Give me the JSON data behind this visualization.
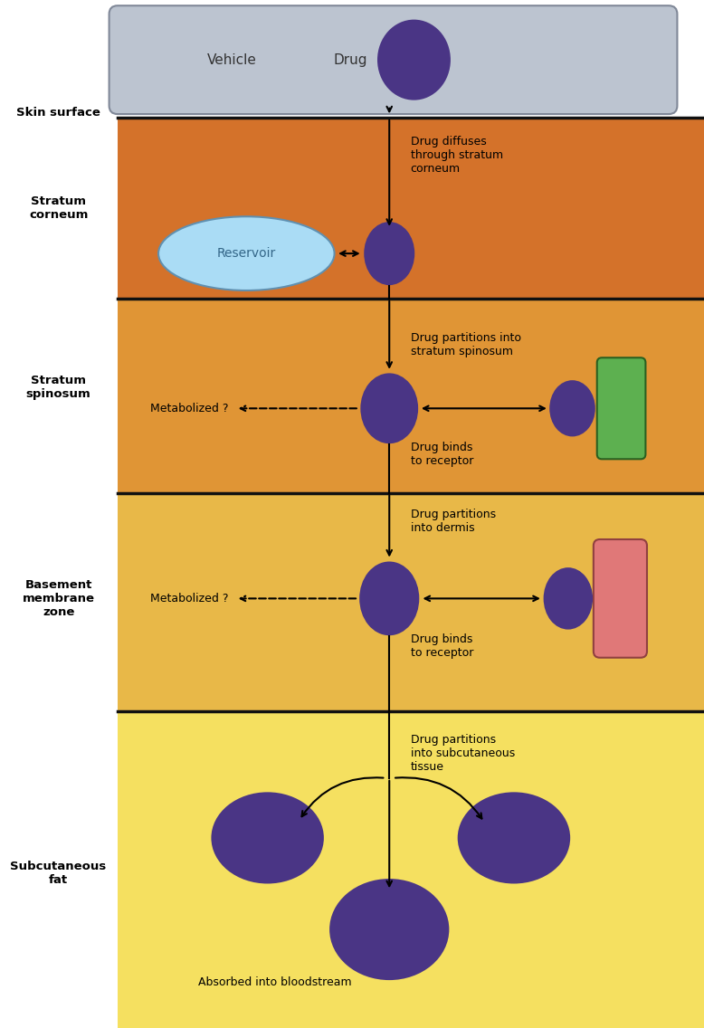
{
  "bg_vehicle": "#bcc4d0",
  "bg_stratum_corneum": "#d4722a",
  "bg_stratum_spinosum": "#e09535",
  "bg_basement_membrane": "#e8b848",
  "bg_subcutaneous": "#f5e060",
  "drug_color": "#4a3585",
  "reservoir_color": "#aadcf5",
  "receptor_green": "#5db050",
  "receptor_pink": "#e07878",
  "text_color": "#000000",
  "label_color": "#000000",
  "layer_divider_color": "#111111",
  "vehicle_text": "Vehicle",
  "drug_text": "Drug",
  "skin_surface_label": "Skin surface",
  "stratum_corneum_label": "Stratum\ncorneum",
  "stratum_spinosum_label": "Stratum\nspinosum",
  "basement_label": "Basement\nmembrane\nzone",
  "subcutaneous_label": "Subcutaneous\nfat",
  "reservoir_text": "Reservoir",
  "drug_diffuses_text": "Drug diffuses\nthrough stratum\ncorneum",
  "drug_partitions_spinosum": "Drug partitions into\nstratum spinosum",
  "metabolized_text": "Metabolized ?",
  "drug_binds_receptor1": "Drug binds\nto receptor",
  "drug_partitions_dermis": "Drug partitions\ninto dermis",
  "drug_binds_receptor2": "Drug binds\nto receptor",
  "drug_partitions_subcut": "Drug partitions\ninto subcutaneous\ntissue",
  "absorbed_text": "Absorbed into bloodstream"
}
